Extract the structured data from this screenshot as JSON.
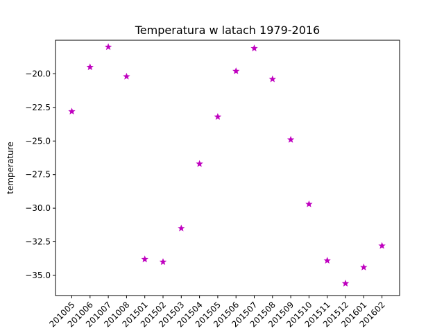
{
  "chart_data": {
    "type": "scatter",
    "title": "Temperatura w latach 1979-2016",
    "xlabel": "",
    "ylabel": "temperature",
    "categories": [
      "201005",
      "201006",
      "201007",
      "201008",
      "201501",
      "201502",
      "201503",
      "201504",
      "201505",
      "201506",
      "201507",
      "201508",
      "201509",
      "201510",
      "201511",
      "201512",
      "201601",
      "201602"
    ],
    "series": [
      {
        "values": [
          -22.8,
          -19.5,
          -18.0,
          -20.2,
          -33.8,
          -34.0,
          -31.5,
          -26.7,
          -23.2,
          -19.8,
          -18.1,
          -20.4,
          -24.9,
          -29.7,
          -33.9,
          -35.6,
          -34.4,
          -32.8
        ],
        "color": "#bf00bf",
        "marker": "star"
      }
    ],
    "ylim": [
      -36.5,
      -17.5
    ],
    "yticks": [
      -20.0,
      -22.5,
      -25.0,
      -27.5,
      -30.0,
      -32.5,
      -35.0
    ],
    "ytick_labels": [
      "−20.0",
      "−22.5",
      "−25.0",
      "−27.5",
      "−30.0",
      "−32.5",
      "−35.0"
    ],
    "grid": false,
    "legend": "none"
  }
}
